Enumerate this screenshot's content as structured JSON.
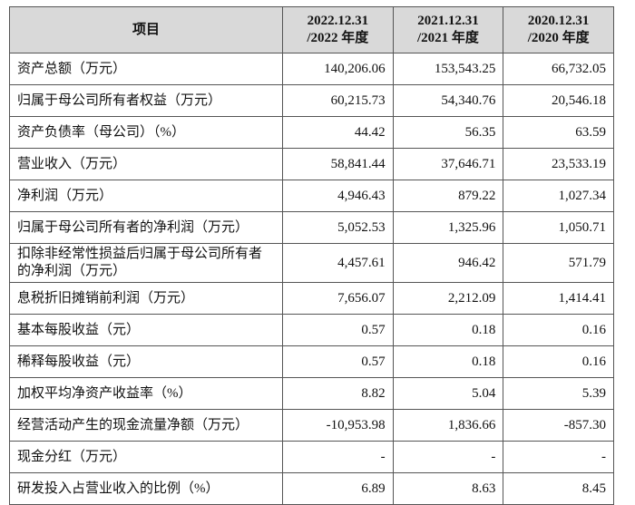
{
  "table": {
    "header": [
      [
        "项目"
      ],
      [
        "2022.12.31",
        "/2022 年度"
      ],
      [
        "2021.12.31",
        "/2021 年度"
      ],
      [
        "2020.12.31",
        "/2020 年度"
      ]
    ],
    "rows": [
      [
        "资产总额（万元）",
        "140,206.06",
        "153,543.25",
        "66,732.05"
      ],
      [
        "归属于母公司所有者权益（万元）",
        "60,215.73",
        "54,340.76",
        "20,546.18"
      ],
      [
        "资产负债率（母公司）（%）",
        "44.42",
        "56.35",
        "63.59"
      ],
      [
        "营业收入（万元）",
        "58,841.44",
        "37,646.71",
        "23,533.19"
      ],
      [
        "净利润（万元）",
        "4,946.43",
        "879.22",
        "1,027.34"
      ],
      [
        "归属于母公司所有者的净利润（万元）",
        "5,052.53",
        "1,325.96",
        "1,050.71"
      ],
      [
        "扣除非经常性损益后归属于母公司所有者的净利润（万元）",
        "4,457.61",
        "946.42",
        "571.79"
      ],
      [
        "息税折旧摊销前利润（万元）",
        "7,656.07",
        "2,212.09",
        "1,414.41"
      ],
      [
        "基本每股收益（元）",
        "0.57",
        "0.18",
        "0.16"
      ],
      [
        "稀释每股收益（元）",
        "0.57",
        "0.18",
        "0.16"
      ],
      [
        "加权平均净资产收益率（%）",
        "8.82",
        "5.04",
        "5.39"
      ],
      [
        "经营活动产生的现金流量净额（万元）",
        "-10,953.98",
        "1,836.66",
        "-857.30"
      ],
      [
        "现金分红（万元）",
        "-",
        "-",
        "-"
      ],
      [
        "研发投入占营业收入的比例（%）",
        "6.89",
        "8.63",
        "8.45"
      ]
    ]
  }
}
